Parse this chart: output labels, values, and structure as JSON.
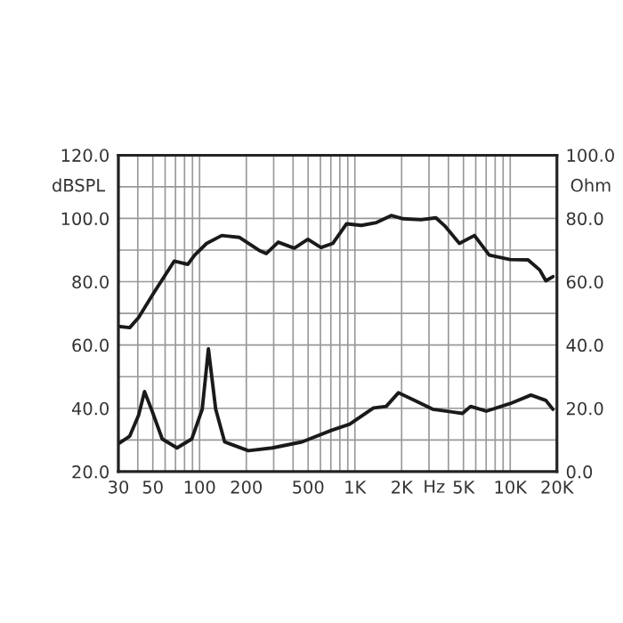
{
  "chart_data": {
    "type": "line",
    "xlabel": "Hz",
    "ylabel": "dBSPL",
    "y2label": "Ohm",
    "log": "x",
    "grid": true,
    "legend": false,
    "marker": "none",
    "line_style": "solid",
    "xlim": [
      30,
      20000
    ],
    "xticks": [
      30,
      {
        "value": 40,
        "label": null
      },
      50,
      {
        "value": 60,
        "label": null
      },
      {
        "value": 70,
        "label": null
      },
      {
        "value": 80,
        "label": null
      },
      {
        "value": 90,
        "label": null
      },
      100,
      200,
      {
        "value": 300,
        "label": null
      },
      {
        "value": 400,
        "label": null
      },
      500,
      {
        "value": 600,
        "label": null
      },
      {
        "value": 700,
        "label": null
      },
      {
        "value": 800,
        "label": null
      },
      {
        "value": 900,
        "label": null
      },
      {
        "value": 1000,
        "label": "1K"
      },
      {
        "value": 2000,
        "label": "2K"
      },
      {
        "value": 3000,
        "label": null
      },
      {
        "value": 4000,
        "label": null
      },
      {
        "value": 5000,
        "label": "5K"
      },
      {
        "value": 6000,
        "label": null
      },
      {
        "value": 7000,
        "label": null
      },
      {
        "value": 8000,
        "label": null
      },
      {
        "value": 9000,
        "label": null
      },
      {
        "value": 10000,
        "label": "10K"
      },
      {
        "value": 20000,
        "label": "20K"
      }
    ],
    "ylim": [
      20,
      120
    ],
    "yticks": [
      {
        "value": 20,
        "label": "20.0"
      },
      {
        "value": 30,
        "label": null
      },
      {
        "value": 40,
        "label": "40.0"
      },
      {
        "value": 50,
        "label": null
      },
      {
        "value": 60,
        "label": "60.0"
      },
      {
        "value": 70,
        "label": null
      },
      {
        "value": 80,
        "label": "80.0"
      },
      {
        "value": 90,
        "label": null
      },
      {
        "value": 100,
        "label": "100.0"
      },
      {
        "value": 110,
        "label": null
      },
      {
        "value": 120,
        "label": "120.0"
      }
    ],
    "y2lim": [
      0,
      100
    ],
    "y2ticks": [
      {
        "value": 0,
        "label": "0.0"
      },
      {
        "value": 20,
        "label": "20.0"
      },
      {
        "value": 40,
        "label": "40.0"
      },
      {
        "value": 60,
        "label": "60.0"
      },
      {
        "value": 80,
        "label": "80.0"
      },
      {
        "value": 100,
        "label": "100.0"
      }
    ],
    "series": [
      {
        "color": "#1a1a1a",
        "x": [
          30,
          35.5,
          40.5,
          50.3,
          68.6,
          84,
          93,
          111,
          139,
          181,
          246,
          269,
          321,
          407,
          498,
          605,
          720,
          884,
          1102,
          1376,
          1714,
          2045,
          2664,
          3323,
          3781,
          4710,
          5885,
          7330,
          9990,
          13030,
          15500,
          16960,
          18840
        ],
        "values": [
          65.9,
          65.5,
          68.7,
          76.2,
          86.5,
          85.5,
          88.4,
          92.1,
          94.6,
          94.0,
          89.7,
          88.9,
          92.5,
          90.6,
          93.4,
          90.8,
          92.1,
          98.3,
          97.8,
          98.7,
          100.9,
          99.9,
          99.6,
          100.2,
          97.7,
          92.1,
          94.6,
          88.4,
          87.0,
          86.9,
          83.7,
          80.3,
          81.6
        ]
      },
      {
        "color": "#1a1a1a",
        "axis": "y2",
        "x": [
          30,
          35.5,
          40.5,
          44.2,
          49,
          57.5,
          71.6,
          89,
          104,
          114,
          127,
          145,
          206,
          294,
          457,
          710,
          925,
          1317,
          1590,
          1905,
          2430,
          3170,
          4930,
          5560,
          7010,
          9990,
          13600,
          16960,
          18840
        ],
        "values": [
          8.8,
          11.2,
          17.8,
          25.3,
          19.7,
          10.3,
          7.5,
          10.3,
          19.7,
          38.8,
          19.7,
          9.4,
          6.6,
          7.5,
          9.4,
          13.1,
          15.0,
          20.1,
          20.6,
          24.9,
          22.5,
          19.7,
          18.4,
          20.6,
          19.1,
          21.5,
          24.2,
          22.5,
          19.7
        ]
      }
    ]
  }
}
